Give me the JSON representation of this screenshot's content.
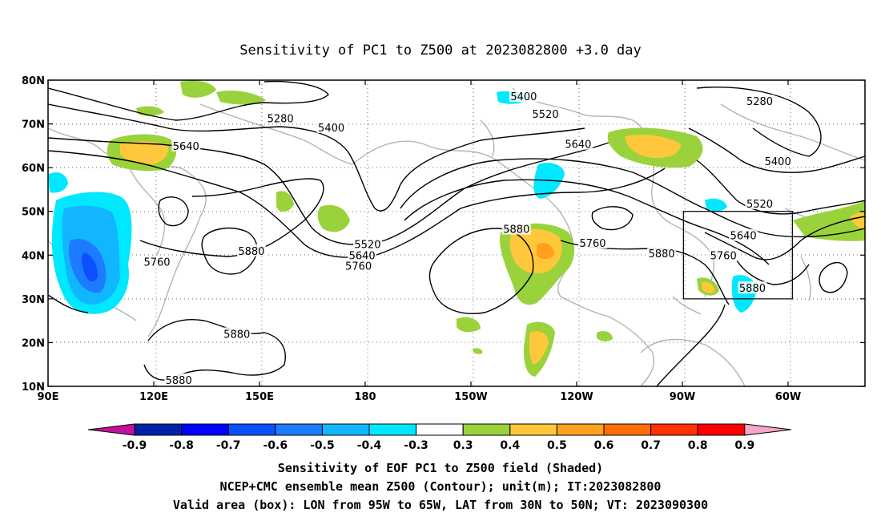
{
  "title": "Sensitivity of PC1 to Z500 at 2023082800 +3.0 day",
  "map": {
    "lon_ticks": [
      "90E",
      "120E",
      "150E",
      "180",
      "150W",
      "120W",
      "90W",
      "60W"
    ],
    "lat_ticks": [
      "10N",
      "20N",
      "30N",
      "40N",
      "50N",
      "60N",
      "70N",
      "80N"
    ],
    "lon_range": [
      90,
      315
    ],
    "lat_range": [
      10,
      80
    ],
    "contour_labels": [
      {
        "text": "5280",
        "lon": 154,
        "lat": 71.3
      },
      {
        "text": "5400",
        "lon": 168,
        "lat": 69.2
      },
      {
        "text": "5640",
        "lon": 128,
        "lat": 65
      },
      {
        "text": "5880",
        "lon": 146,
        "lat": 41
      },
      {
        "text": "5760",
        "lon": 120,
        "lat": 38.5
      },
      {
        "text": "5880",
        "lon": 142,
        "lat": 22
      },
      {
        "text": "5880",
        "lon": 126,
        "lat": 11.5
      },
      {
        "text": "5520",
        "lon": 178,
        "lat": 42.5
      },
      {
        "text": "5640",
        "lon": 176.5,
        "lat": 40
      },
      {
        "text": "5760",
        "lon": 175.5,
        "lat": 37.6
      },
      {
        "text": "5400",
        "lon": 221,
        "lat": 76.3
      },
      {
        "text": "5520",
        "lon": 227,
        "lat": 72.3
      },
      {
        "text": "5640",
        "lon": 236,
        "lat": 65.4
      },
      {
        "text": "5880",
        "lon": 219,
        "lat": 46
      },
      {
        "text": "5760",
        "lon": 240,
        "lat": 42.8
      },
      {
        "text": "5880",
        "lon": 259,
        "lat": 40.4
      },
      {
        "text": "5280",
        "lon": 286,
        "lat": 75.2
      },
      {
        "text": "5400",
        "lon": 291,
        "lat": 61.5
      },
      {
        "text": "5520",
        "lon": 286,
        "lat": 51.8
      },
      {
        "text": "5640",
        "lon": 281.5,
        "lat": 44.5
      },
      {
        "text": "5760",
        "lon": 276,
        "lat": 40
      },
      {
        "text": "5880",
        "lon": 284,
        "lat": 32.5
      }
    ],
    "valid_box": {
      "lon": [
        265,
        295
      ],
      "lat": [
        30,
        50
      ]
    }
  },
  "colorbar": {
    "labels": [
      "-0.9",
      "-0.8",
      "-0.7",
      "-0.6",
      "-0.5",
      "-0.4",
      "-0.3",
      "0.3",
      "0.4",
      "0.5",
      "0.6",
      "0.7",
      "0.8",
      "0.9"
    ],
    "colors": [
      "#c3119b",
      "#0022a8",
      "#0000ff",
      "#0a50ff",
      "#1c7bff",
      "#12b6ff",
      "#00e8ff",
      "#ffffff",
      "#9ad23c",
      "#ffc83c",
      "#ffa11e",
      "#ff6e05",
      "#ff3200",
      "#ff0000",
      "#f7a6c8"
    ]
  },
  "captions": [
    "Sensitivity of EOF PC1 to Z500 field (Shaded)",
    "NCEP+CMC ensemble mean Z500 (Contour); unit(m); IT:2023082800",
    "Valid area (box): LON from 95W to 65W, LAT from 30N to 50N; VT: 2023090300"
  ]
}
